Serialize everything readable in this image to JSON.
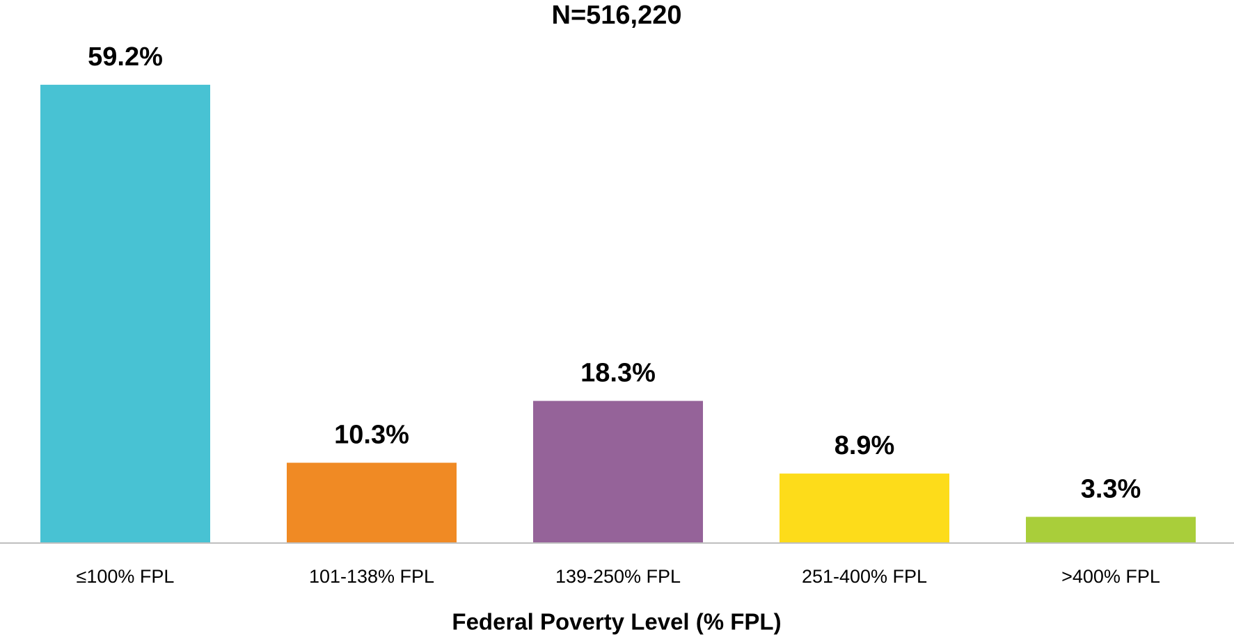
{
  "chart_data": {
    "type": "bar",
    "title": "N=516,220",
    "x_label": "Federal Poverty Level (% FPL)",
    "categories": [
      "≤100% FPL",
      "101-138% FPL",
      "139-250% FPL",
      "251-400% FPL",
      ">400% FPL"
    ],
    "values": [
      59.2,
      10.3,
      18.3,
      8.9,
      3.3
    ],
    "value_labels": [
      "59.2%",
      "10.3%",
      "18.3%",
      "8.9%",
      "3.3%"
    ],
    "colors": [
      "#48c2d3",
      "#f08a24",
      "#956399",
      "#fddc1a",
      "#a9ce3a"
    ],
    "ylim": [
      0,
      60
    ]
  }
}
